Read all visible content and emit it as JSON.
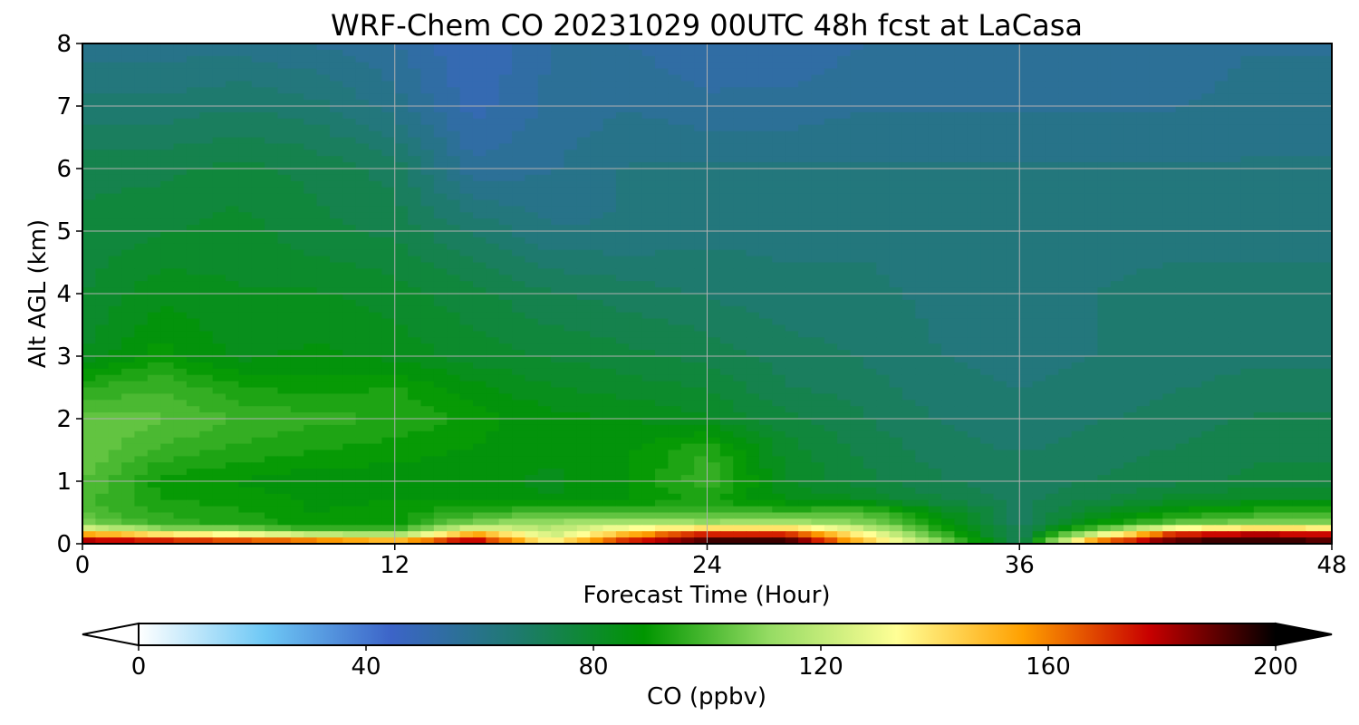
{
  "chart_data": {
    "type": "heatmap",
    "title": "WRF-Chem CO  20231029 00UTC 48h fcst at LaCasa",
    "xlabel": "Forecast Time (Hour)",
    "ylabel": "Alt AGL (km)",
    "xlim": [
      0,
      48
    ],
    "ylim": [
      0,
      8
    ],
    "xticks": [
      "0",
      "12",
      "24",
      "36",
      "48"
    ],
    "yticks": [
      "0",
      "1",
      "2",
      "3",
      "4",
      "5",
      "6",
      "7",
      "8"
    ],
    "grid": true,
    "colorbar": {
      "label": "CO  (ppbv)",
      "range": [
        0,
        200
      ],
      "ticks": [
        "0",
        "40",
        "80",
        "120",
        "160",
        "200"
      ],
      "extend": "both",
      "orientation": "horizontal",
      "placement": "bottom",
      "colors": [
        "#ffffff",
        "#6ec8f5",
        "#3c64c8",
        "#1e7a6e",
        "#009600",
        "#96dc64",
        "#ffff96",
        "#ffa000",
        "#c80000",
        "#000000"
      ]
    },
    "hours": [
      0,
      3,
      6,
      9,
      12,
      15,
      18,
      21,
      24,
      27,
      30,
      33,
      36,
      39,
      42,
      45,
      48
    ],
    "altitudes_km": [
      0,
      0.1,
      0.2,
      0.3,
      0.5,
      0.7,
      1,
      1.5,
      2,
      2.5,
      3,
      4,
      5,
      6,
      7,
      8
    ],
    "values_ppbv": [
      [
        190,
        185,
        182,
        178,
        165,
        190,
        140,
        185,
        200,
        200,
        150,
        110,
        72,
        175,
        195,
        200,
        195
      ],
      [
        170,
        160,
        150,
        140,
        130,
        170,
        125,
        160,
        185,
        190,
        140,
        100,
        70,
        140,
        185,
        190,
        185
      ],
      [
        140,
        120,
        115,
        100,
        100,
        140,
        120,
        145,
        165,
        160,
        130,
        95,
        70,
        110,
        160,
        170,
        165
      ],
      [
        110,
        96,
        95,
        90,
        90,
        110,
        115,
        120,
        115,
        120,
        110,
        90,
        70,
        90,
        105,
        110,
        110
      ],
      [
        100,
        95,
        92,
        88,
        90,
        95,
        100,
        100,
        98,
        98,
        100,
        85,
        70,
        82,
        90,
        95,
        95
      ],
      [
        100,
        92,
        90,
        88,
        88,
        88,
        85,
        88,
        92,
        85,
        82,
        75,
        70,
        75,
        80,
        82,
        82
      ],
      [
        102,
        90,
        88,
        86,
        86,
        86,
        84,
        88,
        98,
        82,
        76,
        72,
        70,
        72,
        74,
        76,
        76
      ],
      [
        105,
        98,
        94,
        92,
        90,
        88,
        86,
        88,
        95,
        80,
        74,
        70,
        68,
        70,
        72,
        74,
        74
      ],
      [
        104,
        102,
        98,
        96,
        95,
        90,
        86,
        85,
        82,
        76,
        72,
        68,
        66,
        68,
        70,
        72,
        72
      ],
      [
        95,
        98,
        92,
        90,
        92,
        86,
        82,
        80,
        78,
        72,
        70,
        66,
        65,
        66,
        68,
        70,
        70
      ],
      [
        82,
        90,
        84,
        86,
        84,
        80,
        78,
        76,
        74,
        70,
        68,
        65,
        64,
        65,
        66,
        67,
        67
      ],
      [
        78,
        84,
        82,
        82,
        80,
        76,
        72,
        70,
        68,
        66,
        66,
        64,
        64,
        65,
        66,
        66,
        66
      ],
      [
        76,
        78,
        80,
        76,
        74,
        68,
        62,
        62,
        64,
        64,
        64,
        64,
        64,
        64,
        64,
        64,
        64
      ],
      [
        74,
        74,
        76,
        74,
        70,
        56,
        58,
        62,
        62,
        62,
        62,
        62,
        62,
        62,
        62,
        62,
        62
      ],
      [
        66,
        66,
        68,
        66,
        60,
        50,
        56,
        58,
        56,
        56,
        58,
        58,
        58,
        58,
        58,
        60,
        60
      ],
      [
        60,
        60,
        60,
        58,
        55,
        48,
        55,
        55,
        52,
        52,
        55,
        55,
        55,
        55,
        56,
        58,
        58
      ]
    ]
  }
}
